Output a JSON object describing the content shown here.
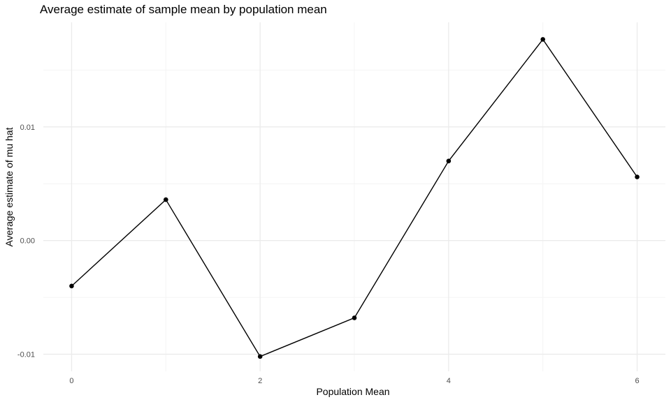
{
  "chart_data": {
    "type": "line",
    "title": "Average estimate of sample mean by population mean",
    "xlabel": "Population Mean",
    "ylabel": "Average estimate of mu hat",
    "x": [
      0,
      1,
      2,
      3,
      4,
      5,
      6
    ],
    "series": [
      {
        "values": [
          -0.004,
          0.0036,
          -0.0102,
          -0.0068,
          0.007,
          0.0177,
          0.0056
        ]
      }
    ],
    "xlim": [
      -0.3,
      6.3
    ],
    "ylim": [
      -0.0115,
      0.0192
    ],
    "x_ticks": [
      0,
      2,
      4,
      6
    ],
    "x_tick_labels": [
      "0",
      "2",
      "4",
      "6"
    ],
    "y_ticks": [
      -0.01,
      0.0,
      0.01
    ],
    "y_tick_labels": [
      "-0.01",
      "0.00",
      "0.01"
    ],
    "x_minor_ticks": [
      1,
      3,
      5
    ],
    "y_minor_ticks": [
      -0.005,
      0.005,
      0.015
    ],
    "grid": true,
    "legend": "none",
    "colors": {
      "line": "#000000",
      "point": "#000000",
      "grid_major": "#ebebeb",
      "grid_minor": "#f4f4f4"
    }
  }
}
